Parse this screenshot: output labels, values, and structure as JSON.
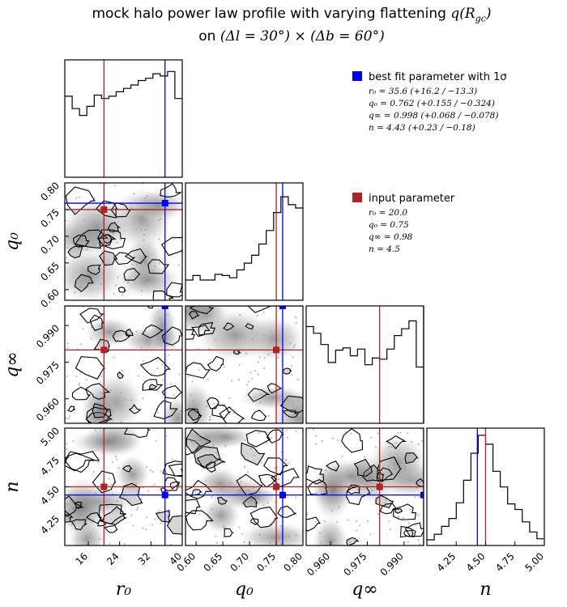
{
  "title": {
    "line1": "mock halo power law profile with varying flattening",
    "line1_math": "q(R",
    "line1_sub": "gc",
    "line1_end": ")",
    "line2_prefix": "on",
    "line2_math": "(Δl = 30°) × (Δb = 60°)"
  },
  "legend": {
    "best_fit": {
      "label": "best fit parameter with 1σ",
      "color": "#0000ff",
      "lines": [
        "r₀ = 35.6 (+16.2 / −13.3)",
        "q₀ = 0.762 (+0.155 / −0.324)",
        "q∞ = 0.998 (+0.068 / −0.078)",
        "n = 4.43 (+0.23 / −0.18)"
      ]
    },
    "input": {
      "label": "input parameter",
      "color": "#b22222",
      "lines": [
        "r₀ = 20.0",
        "q₀ = 0.75",
        "q∞ = 0.98",
        "n = 4.5"
      ]
    }
  },
  "chart_data": {
    "type": "corner",
    "title": "mock halo power law profile with varying flattening q(R_gc) on (Δl=30°)×(Δb=60°)",
    "parameters": [
      {
        "name": "r0",
        "label": "r₀",
        "range": [
          10,
          40
        ],
        "ticks": [
          16,
          24,
          32,
          40
        ],
        "tick_labels": [
          "16",
          "24",
          "32",
          "40"
        ],
        "input": 20.0,
        "best_fit": 35.6
      },
      {
        "name": "q0",
        "label": "q₀",
        "range": [
          0.58,
          0.8
        ],
        "ticks": [
          0.6,
          0.65,
          0.7,
          0.75,
          0.8
        ],
        "tick_labels": [
          "0.60",
          "0.65",
          "0.70",
          "0.75",
          "0.80"
        ],
        "input": 0.75,
        "best_fit": 0.762
      },
      {
        "name": "qinf",
        "label": "q∞",
        "range": [
          0.95,
          0.998
        ],
        "ticks": [
          0.96,
          0.975,
          0.99
        ],
        "tick_labels": [
          "0.960",
          "0.975",
          "0.990"
        ],
        "input": 0.98,
        "best_fit": 0.998
      },
      {
        "name": "n",
        "label": "n",
        "range": [
          4.0,
          5.0
        ],
        "ticks": [
          4.25,
          4.5,
          4.75,
          5.0
        ],
        "tick_labels": [
          "4.25",
          "4.50",
          "4.75",
          "5.00"
        ],
        "input": 4.5,
        "best_fit": 4.43
      }
    ],
    "histograms": [
      [
        0.72,
        0.61,
        0.55,
        0.63,
        0.73,
        0.7,
        0.72,
        0.76,
        0.79,
        0.82,
        0.86,
        0.88,
        0.92,
        0.9,
        0.94,
        0.7
      ],
      [
        0.18,
        0.22,
        0.18,
        0.18,
        0.23,
        0.22,
        0.2,
        0.27,
        0.33,
        0.4,
        0.5,
        0.62,
        0.78,
        0.92,
        0.85,
        0.82
      ],
      [
        0.86,
        0.8,
        0.7,
        0.54,
        0.65,
        0.67,
        0.6,
        0.66,
        0.52,
        0.58,
        0.57,
        0.66,
        0.78,
        0.84,
        0.91,
        0.5
      ],
      [
        0.05,
        0.1,
        0.17,
        0.24,
        0.38,
        0.58,
        0.82,
        0.98,
        0.9,
        0.66,
        0.52,
        0.37,
        0.32,
        0.21,
        0.12,
        0.06
      ]
    ],
    "contour_note": "2D density contours with scattered samples for each parameter pair"
  }
}
